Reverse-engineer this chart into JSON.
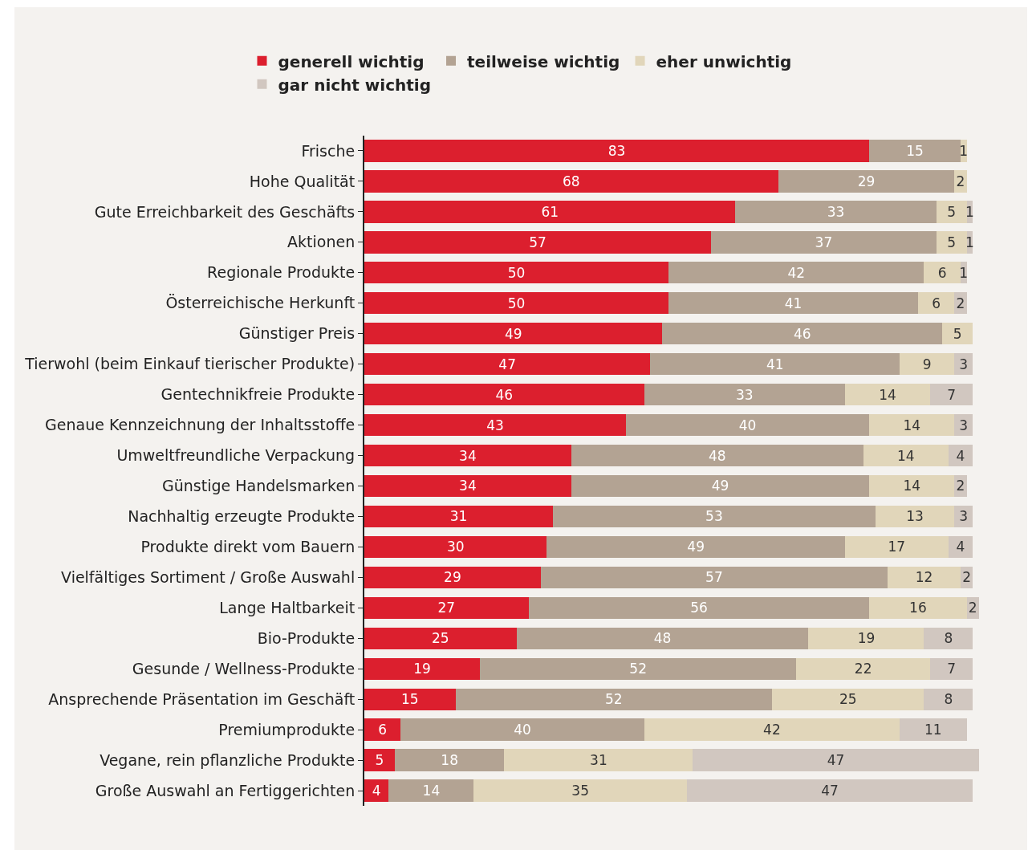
{
  "chart_data": {
    "type": "bar",
    "orientation": "horizontal",
    "stacked": true,
    "data_labels": true,
    "legend": "top",
    "categories": [
      "Frische",
      "Hohe Qualität",
      "Gute Erreichbarkeit des Geschäfts",
      "Aktionen",
      "Regionale Produkte",
      "Österreichische Herkunft",
      "Günstiger Preis",
      "Tierwohl (beim Einkauf tierischer Produkte)",
      "Gentechnikfreie Produkte",
      "Genaue Kennzeichnung der Inhaltsstoffe",
      "Umweltfreundliche Verpackung",
      "Günstige Handelsmarken",
      "Nachhaltig erzeugte Produkte",
      "Produkte direkt vom Bauern",
      "Vielfältiges Sortiment / Große Auswahl",
      "Lange Haltbarkeit",
      "Bio-Produkte",
      "Gesunde / Wellness-Produkte",
      "Ansprechende Präsentation im Geschäft",
      "Premiumprodukte",
      "Vegane, rein pflanzliche Produkte",
      "Große Auswahl an Fertiggerichten"
    ],
    "series": [
      {
        "name": "generell wichtig",
        "color": "#dc1f2e",
        "values": [
          83,
          68,
          61,
          57,
          50,
          50,
          49,
          47,
          46,
          43,
          34,
          34,
          31,
          30,
          29,
          27,
          25,
          19,
          15,
          6,
          5,
          4
        ]
      },
      {
        "name": "teilweise wichtig",
        "color": "#b3a393",
        "values": [
          15,
          29,
          33,
          37,
          42,
          41,
          46,
          41,
          33,
          40,
          48,
          49,
          53,
          49,
          57,
          56,
          48,
          52,
          52,
          40,
          18,
          14
        ]
      },
      {
        "name": "eher unwichtig",
        "color": "#e1d6ba",
        "values": [
          1,
          2,
          5,
          5,
          6,
          6,
          5,
          9,
          14,
          14,
          14,
          14,
          13,
          17,
          12,
          16,
          19,
          22,
          25,
          42,
          31,
          35
        ]
      },
      {
        "name": "gar nicht wichtig",
        "color": "#d1c7c0",
        "values": [
          null,
          null,
          1,
          1,
          1,
          2,
          null,
          3,
          7,
          3,
          4,
          2,
          3,
          4,
          2,
          2,
          8,
          7,
          8,
          11,
          47,
          47
        ]
      }
    ]
  }
}
